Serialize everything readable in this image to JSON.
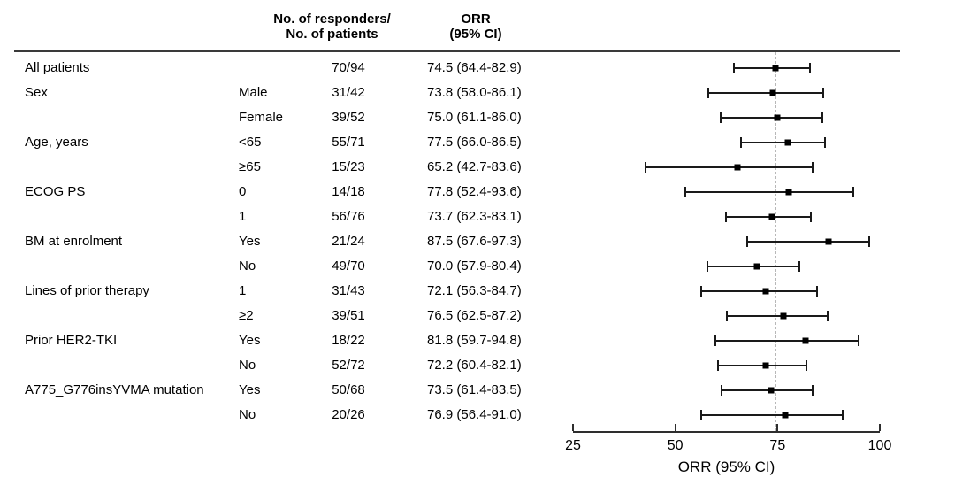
{
  "chart_data": {
    "type": "scatter",
    "subtype": "forest-plot",
    "title": "",
    "xlabel": "ORR (95% CI)",
    "xlim": [
      25,
      100
    ],
    "xticks": [
      "25",
      "50",
      "75",
      "100"
    ],
    "reference_line_x": 74.5,
    "grid": false,
    "columns": {
      "responders_header": [
        "No. of responders/",
        "No. of patients"
      ],
      "orr_header": [
        "ORR",
        "(95% CI)"
      ]
    },
    "rows": [
      {
        "group": "All patients",
        "subgroup": "",
        "n": "70/94",
        "responders": 70,
        "patients": 94,
        "orr": "74.5 (64.4-82.9)",
        "est": 74.5,
        "lo": 64.4,
        "hi": 82.9
      },
      {
        "group": "Sex",
        "subgroup": "Male",
        "n": "31/42",
        "responders": 31,
        "patients": 42,
        "orr": "73.8 (58.0-86.1)",
        "est": 73.8,
        "lo": 58.0,
        "hi": 86.1
      },
      {
        "group": "",
        "subgroup": "Female",
        "n": "39/52",
        "responders": 39,
        "patients": 52,
        "orr": "75.0 (61.1-86.0)",
        "est": 75.0,
        "lo": 61.1,
        "hi": 86.0
      },
      {
        "group": "Age, years",
        "subgroup": "<65",
        "n": "55/71",
        "responders": 55,
        "patients": 71,
        "orr": "77.5 (66.0-86.5)",
        "est": 77.5,
        "lo": 66.0,
        "hi": 86.5
      },
      {
        "group": "",
        "subgroup": "≥65",
        "n": "15/23",
        "responders": 15,
        "patients": 23,
        "orr": "65.2 (42.7-83.6)",
        "est": 65.2,
        "lo": 42.7,
        "hi": 83.6
      },
      {
        "group": "ECOG PS",
        "subgroup": "0",
        "n": "14/18",
        "responders": 14,
        "patients": 18,
        "orr": "77.8 (52.4-93.6)",
        "est": 77.8,
        "lo": 52.4,
        "hi": 93.6
      },
      {
        "group": "",
        "subgroup": "1",
        "n": "56/76",
        "responders": 56,
        "patients": 76,
        "orr": "73.7 (62.3-83.1)",
        "est": 73.7,
        "lo": 62.3,
        "hi": 83.1
      },
      {
        "group": "BM at enrolment",
        "subgroup": "Yes",
        "n": "21/24",
        "responders": 21,
        "patients": 24,
        "orr": "87.5 (67.6-97.3)",
        "est": 87.5,
        "lo": 67.6,
        "hi": 97.3
      },
      {
        "group": "",
        "subgroup": "No",
        "n": "49/70",
        "responders": 49,
        "patients": 70,
        "orr": "70.0 (57.9-80.4)",
        "est": 70.0,
        "lo": 57.9,
        "hi": 80.4
      },
      {
        "group": "Lines of prior therapy",
        "subgroup": "1",
        "n": "31/43",
        "responders": 31,
        "patients": 43,
        "orr": "72.1 (56.3-84.7)",
        "est": 72.1,
        "lo": 56.3,
        "hi": 84.7
      },
      {
        "group": "",
        "subgroup": "≥2",
        "n": "39/51",
        "responders": 39,
        "patients": 51,
        "orr": "76.5 (62.5-87.2)",
        "est": 76.5,
        "lo": 62.5,
        "hi": 87.2
      },
      {
        "group": "Prior HER2-TKI",
        "subgroup": "Yes",
        "n": "18/22",
        "responders": 18,
        "patients": 22,
        "orr": "81.8 (59.7-94.8)",
        "est": 81.8,
        "lo": 59.7,
        "hi": 94.8
      },
      {
        "group": "",
        "subgroup": "No",
        "n": "52/72",
        "responders": 52,
        "patients": 72,
        "orr": "72.2 (60.4-82.1)",
        "est": 72.2,
        "lo": 60.4,
        "hi": 82.1
      },
      {
        "group": "A775_G776insYVMA mutation",
        "subgroup": "Yes",
        "n": "50/68",
        "responders": 50,
        "patients": 68,
        "orr": "73.5 (61.4-83.5)",
        "est": 73.5,
        "lo": 61.4,
        "hi": 83.5
      },
      {
        "group": "",
        "subgroup": "No",
        "n": "20/26",
        "responders": 20,
        "patients": 26,
        "orr": "76.9 (56.4-91.0)",
        "est": 76.9,
        "lo": 56.4,
        "hi": 91.0
      }
    ]
  },
  "colors": {
    "text": "#000000",
    "line": "#1a1a1a",
    "axis": "#2e2e2e",
    "reference_line": "#b8b8b8",
    "marker": "#000000"
  }
}
